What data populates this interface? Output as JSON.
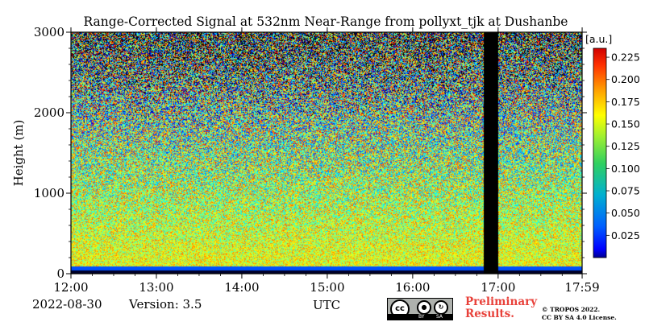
{
  "chart_data": {
    "type": "heatmap",
    "title": "Range-Corrected Signal at 532nm Near-Range from pollyxt_tjk at Dushanbe",
    "xlabel": "UTC",
    "ylabel": "Height (m)",
    "x_ticks": [
      "12:00",
      "13:00",
      "14:00",
      "15:00",
      "16:00",
      "17:00",
      "17:59"
    ],
    "x_range_hours": [
      12.0,
      17.983
    ],
    "y_ticks": [
      0,
      1000,
      2000,
      3000
    ],
    "y_range": [
      0,
      3000
    ],
    "colorbar": {
      "unit": "[a.u.]",
      "ticks": [
        0.025,
        0.05,
        0.075,
        0.1,
        0.125,
        0.15,
        0.175,
        0.2,
        0.225
      ],
      "range": [
        0.0,
        0.235
      ],
      "colormap": "jet"
    },
    "no_data_intervals_hours": [
      [
        16.83,
        17.0
      ]
    ],
    "low_level_band_m": [
      0,
      100
    ]
  },
  "footer": {
    "date": "2022-08-30",
    "version": "Version: 3.5",
    "preliminary": [
      "Preliminary",
      "Results."
    ],
    "copyright": [
      "© TROPOS 2022.",
      "CC BY SA 4.0 License."
    ],
    "license_badge": {
      "cc": "cc",
      "by": "BY",
      "sa": "SA"
    }
  }
}
